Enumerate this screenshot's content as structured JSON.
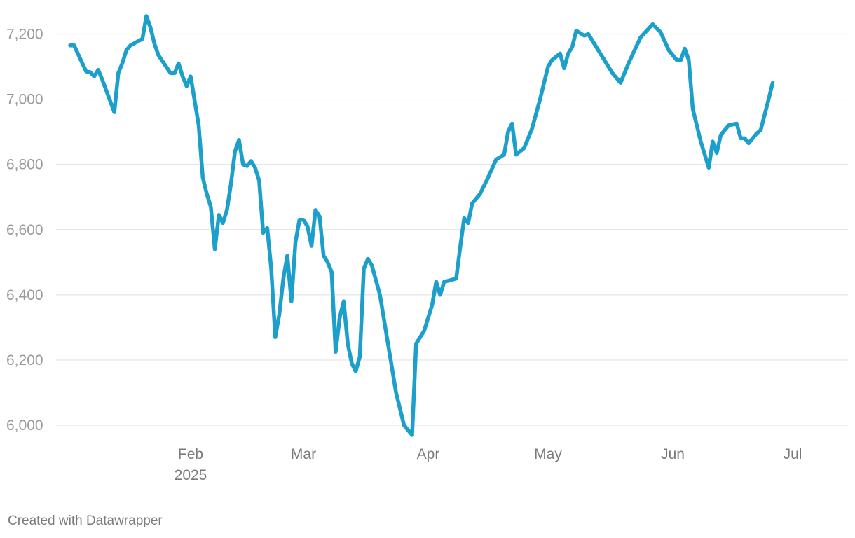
{
  "chart_data": {
    "type": "line",
    "title": "",
    "xlabel": "",
    "ylabel": "",
    "ylim": [
      5950,
      7290
    ],
    "y_ticks": [
      6000,
      6200,
      6400,
      6600,
      6800,
      7000,
      7200
    ],
    "y_tick_labels": [
      "6,000",
      "6,200",
      "6,400",
      "6,600",
      "6,800",
      "7,000",
      "7,200"
    ],
    "x_ticks": [
      {
        "date": "2025-02-01",
        "label": "Feb",
        "sublabel": "2025"
      },
      {
        "date": "2025-03-01",
        "label": "Mar",
        "sublabel": ""
      },
      {
        "date": "2025-04-01",
        "label": "Apr",
        "sublabel": ""
      },
      {
        "date": "2025-05-01",
        "label": "May",
        "sublabel": ""
      },
      {
        "date": "2025-06-01",
        "label": "Jun",
        "sublabel": ""
      },
      {
        "date": "2025-07-01",
        "label": "Jul",
        "sublabel": ""
      }
    ],
    "grid": true,
    "series": [
      {
        "color": "#1d9fcb",
        "points": [
          [
            "2025-01-02",
            7165
          ],
          [
            "2025-01-03",
            7165
          ],
          [
            "2025-01-06",
            7085
          ],
          [
            "2025-01-07",
            7083
          ],
          [
            "2025-01-08",
            7070
          ],
          [
            "2025-01-09",
            7090
          ],
          [
            "2025-01-10",
            7060
          ],
          [
            "2025-01-13",
            6960
          ],
          [
            "2025-01-14",
            7080
          ],
          [
            "2025-01-15",
            7110
          ],
          [
            "2025-01-16",
            7150
          ],
          [
            "2025-01-17",
            7165
          ],
          [
            "2025-01-20",
            7185
          ],
          [
            "2025-01-21",
            7255
          ],
          [
            "2025-01-22",
            7220
          ],
          [
            "2025-01-23",
            7170
          ],
          [
            "2025-01-24",
            7135
          ],
          [
            "2025-01-27",
            7080
          ],
          [
            "2025-01-28",
            7080
          ],
          [
            "2025-01-29",
            7110
          ],
          [
            "2025-01-30",
            7070
          ],
          [
            "2025-01-31",
            7040
          ],
          [
            "2025-02-01",
            7070
          ],
          [
            "2025-02-03",
            6920
          ],
          [
            "2025-02-04",
            6760
          ],
          [
            "2025-02-05",
            6710
          ],
          [
            "2025-02-06",
            6670
          ],
          [
            "2025-02-07",
            6540
          ],
          [
            "2025-02-08",
            6645
          ],
          [
            "2025-02-09",
            6620
          ],
          [
            "2025-02-10",
            6660
          ],
          [
            "2025-02-11",
            6740
          ],
          [
            "2025-02-12",
            6840
          ],
          [
            "2025-02-13",
            6875
          ],
          [
            "2025-02-14",
            6800
          ],
          [
            "2025-02-15",
            6795
          ],
          [
            "2025-02-16",
            6810
          ],
          [
            "2025-02-17",
            6790
          ],
          [
            "2025-02-18",
            6750
          ],
          [
            "2025-02-19",
            6590
          ],
          [
            "2025-02-20",
            6605
          ],
          [
            "2025-02-21",
            6480
          ],
          [
            "2025-02-22",
            6270
          ],
          [
            "2025-02-23",
            6340
          ],
          [
            "2025-02-24",
            6450
          ],
          [
            "2025-02-25",
            6520
          ],
          [
            "2025-02-26",
            6380
          ],
          [
            "2025-02-27",
            6560
          ],
          [
            "2025-02-28",
            6630
          ],
          [
            "2025-03-01",
            6630
          ],
          [
            "2025-03-02",
            6610
          ],
          [
            "2025-03-03",
            6550
          ],
          [
            "2025-03-04",
            6660
          ],
          [
            "2025-03-05",
            6640
          ],
          [
            "2025-03-06",
            6520
          ],
          [
            "2025-03-07",
            6500
          ],
          [
            "2025-03-08",
            6470
          ],
          [
            "2025-03-09",
            6225
          ],
          [
            "2025-03-10",
            6330
          ],
          [
            "2025-03-11",
            6380
          ],
          [
            "2025-03-12",
            6250
          ],
          [
            "2025-03-13",
            6190
          ],
          [
            "2025-03-14",
            6165
          ],
          [
            "2025-03-15",
            6210
          ],
          [
            "2025-03-16",
            6480
          ],
          [
            "2025-03-17",
            6510
          ],
          [
            "2025-03-18",
            6490
          ],
          [
            "2025-03-20",
            6400
          ],
          [
            "2025-03-22",
            6250
          ],
          [
            "2025-03-24",
            6100
          ],
          [
            "2025-03-26",
            6000
          ],
          [
            "2025-03-28",
            5970
          ],
          [
            "2025-03-29",
            6250
          ],
          [
            "2025-03-31",
            6290
          ],
          [
            "2025-04-02",
            6370
          ],
          [
            "2025-04-03",
            6440
          ],
          [
            "2025-04-04",
            6400
          ],
          [
            "2025-04-05",
            6440
          ],
          [
            "2025-04-06",
            6443
          ],
          [
            "2025-04-08",
            6450
          ],
          [
            "2025-04-09",
            6545
          ],
          [
            "2025-04-10",
            6635
          ],
          [
            "2025-04-11",
            6620
          ],
          [
            "2025-04-12",
            6680
          ],
          [
            "2025-04-14",
            6710
          ],
          [
            "2025-04-16",
            6760
          ],
          [
            "2025-04-18",
            6815
          ],
          [
            "2025-04-20",
            6830
          ],
          [
            "2025-04-21",
            6900
          ],
          [
            "2025-04-22",
            6925
          ],
          [
            "2025-04-23",
            6830
          ],
          [
            "2025-04-25",
            6850
          ],
          [
            "2025-04-27",
            6910
          ],
          [
            "2025-04-29",
            7000
          ],
          [
            "2025-05-01",
            7100
          ],
          [
            "2025-05-02",
            7120
          ],
          [
            "2025-05-04",
            7140
          ],
          [
            "2025-05-05",
            7095
          ],
          [
            "2025-05-06",
            7140
          ],
          [
            "2025-05-07",
            7160
          ],
          [
            "2025-05-08",
            7210
          ],
          [
            "2025-05-10",
            7195
          ],
          [
            "2025-05-11",
            7200
          ],
          [
            "2025-05-14",
            7140
          ],
          [
            "2025-05-17",
            7080
          ],
          [
            "2025-05-19",
            7050
          ],
          [
            "2025-05-21",
            7110
          ],
          [
            "2025-05-24",
            7190
          ],
          [
            "2025-05-27",
            7230
          ],
          [
            "2025-05-29",
            7205
          ],
          [
            "2025-05-31",
            7150
          ],
          [
            "2025-06-02",
            7120
          ],
          [
            "2025-06-03",
            7120
          ],
          [
            "2025-06-04",
            7155
          ],
          [
            "2025-06-05",
            7120
          ],
          [
            "2025-06-06",
            6970
          ],
          [
            "2025-06-08",
            6870
          ],
          [
            "2025-06-10",
            6790
          ],
          [
            "2025-06-11",
            6870
          ],
          [
            "2025-06-12",
            6835
          ],
          [
            "2025-06-13",
            6890
          ],
          [
            "2025-06-15",
            6920
          ],
          [
            "2025-06-17",
            6925
          ],
          [
            "2025-06-18",
            6880
          ],
          [
            "2025-06-19",
            6880
          ],
          [
            "2025-06-20",
            6865
          ],
          [
            "2025-06-22",
            6895
          ],
          [
            "2025-06-23",
            6905
          ],
          [
            "2025-06-25",
            7000
          ],
          [
            "2025-06-26",
            7050
          ]
        ]
      }
    ]
  },
  "credit": "Created with Datawrapper"
}
